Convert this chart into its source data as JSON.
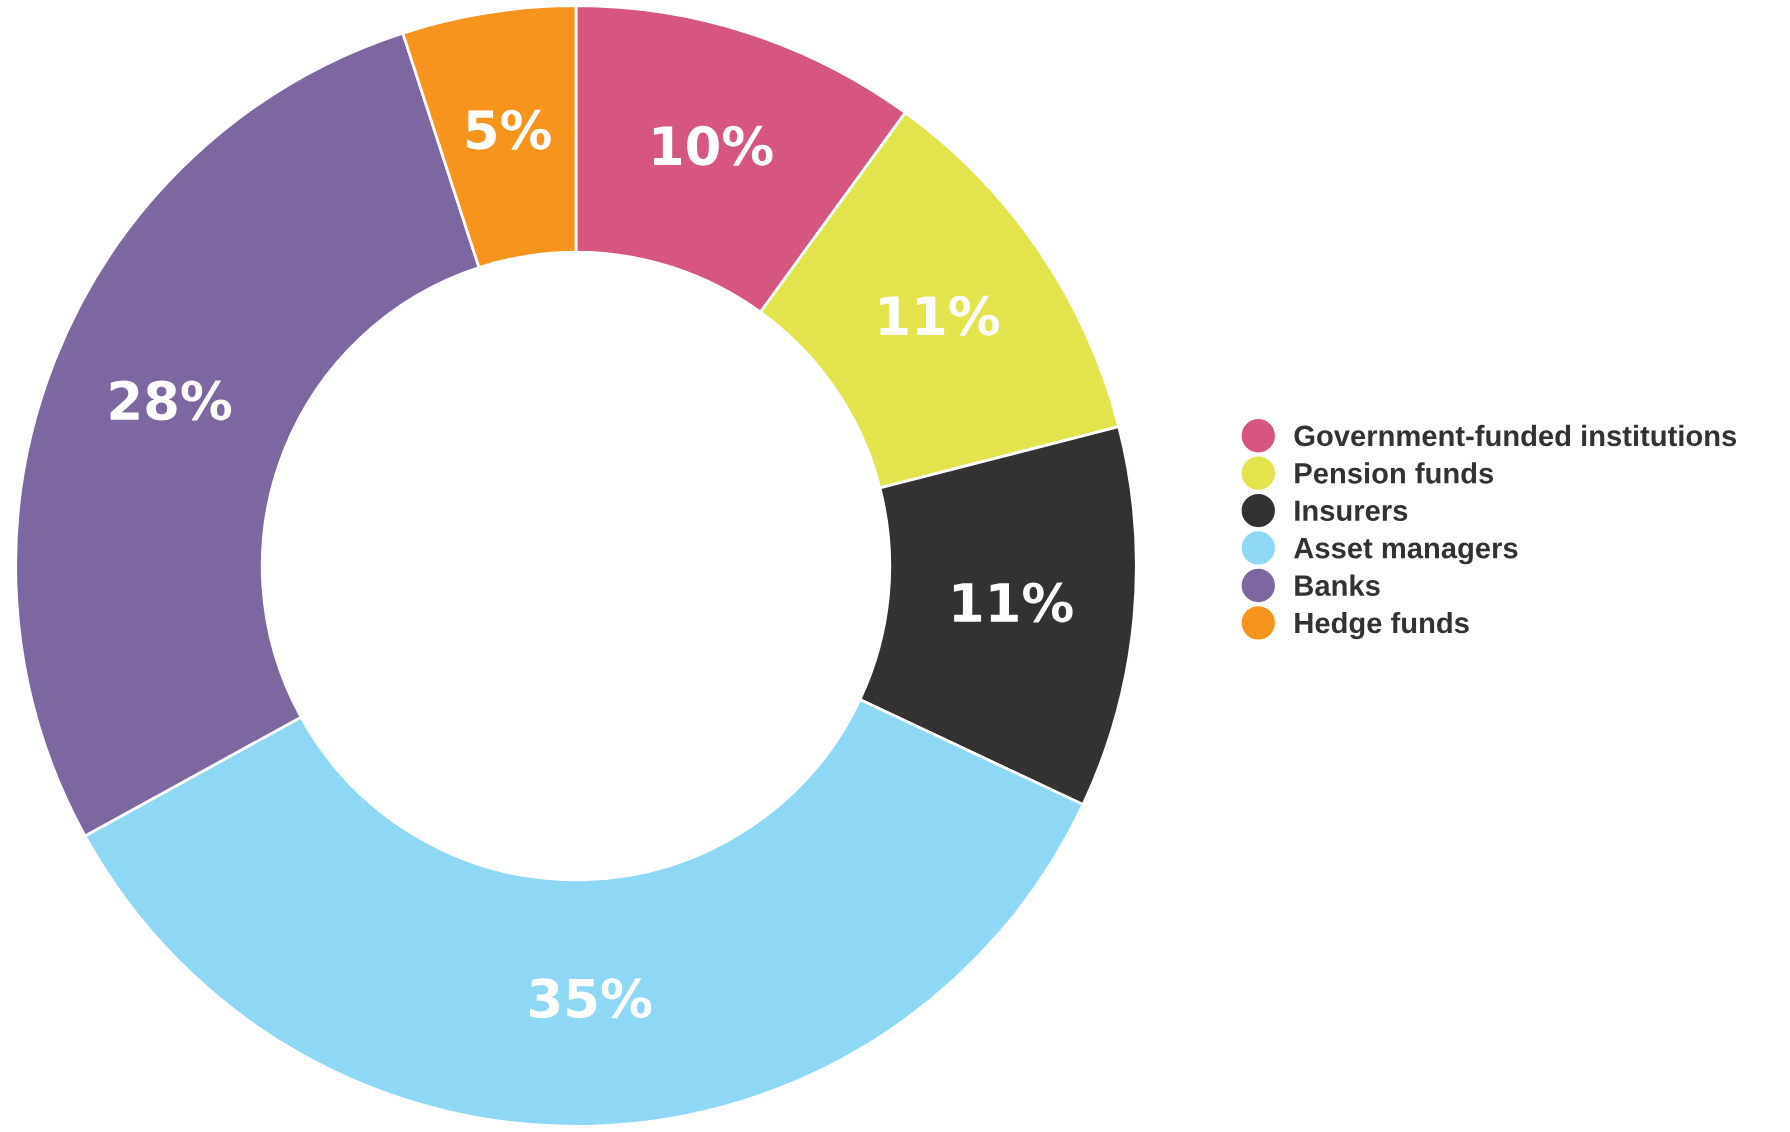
{
  "chart_data": {
    "type": "donut",
    "categories": [
      "Government-funded institutions",
      "Pension funds",
      "Insurers",
      "Asset managers",
      "Banks",
      "Hedge funds"
    ],
    "values": [
      10,
      11,
      11,
      35,
      28,
      5
    ],
    "colors": [
      "#d6567f",
      "#e2e34d",
      "#333132",
      "#8ed8f5",
      "#7d67a0",
      "#f7941d"
    ],
    "value_labels": [
      "10%",
      "11%",
      "11%",
      "35%",
      "28%",
      "5%"
    ],
    "legend": "right"
  }
}
